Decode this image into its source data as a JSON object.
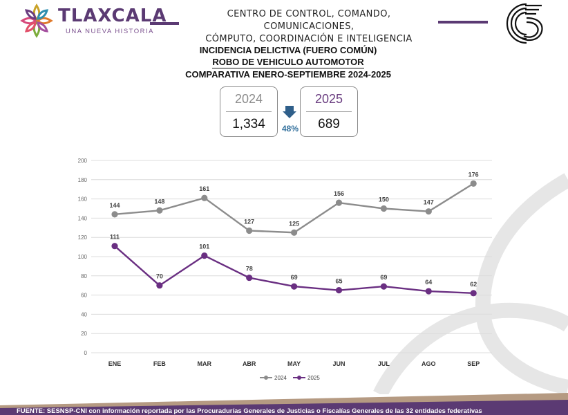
{
  "header": {
    "brand": "TLAXCALA",
    "brand_tagline": "UNA NUEVA HISTORIA",
    "center_line1": "CENTRO DE CONTROL, COMANDO, COMUNICACIONES,",
    "center_line2": "CÓMPUTO, COORDINACIÓN E INTELIGENCIA"
  },
  "title": {
    "line1": "INCIDENCIA DELICTIVA (FUERO COMÚN)",
    "line2": "ROBO DE VEHICULO AUTOMOTOR",
    "line3": "COMPARATIVA ENERO-SEPTIEMBRE 2024-2025"
  },
  "summary": {
    "year_a": "2024",
    "total_a": "1,334",
    "year_b": "2025",
    "total_b": "689",
    "change_pct": "48%"
  },
  "colors": {
    "series_2024": "#8c8c8c",
    "series_2025": "#6a2f82",
    "brand_purple": "#5b3a73",
    "change_arrow": "#2f6e9b"
  },
  "chart_data": {
    "type": "line",
    "title": "",
    "xlabel": "",
    "ylabel": "",
    "categories": [
      "ENE",
      "FEB",
      "MAR",
      "ABR",
      "MAY",
      "JUN",
      "JUL",
      "AGO",
      "SEP"
    ],
    "ylim": [
      0,
      200
    ],
    "yticks": [
      0,
      20,
      40,
      60,
      80,
      100,
      120,
      140,
      160,
      180,
      200
    ],
    "grid": true,
    "legend_position": "bottom",
    "data_labels": true,
    "series": [
      {
        "name": "2024",
        "values": [
          144,
          148,
          161,
          127,
          125,
          156,
          150,
          147,
          176
        ]
      },
      {
        "name": "2025",
        "values": [
          111,
          70,
          101,
          78,
          69,
          65,
          69,
          64,
          62
        ]
      }
    ]
  },
  "footer": {
    "text": "FUENTE: SESNSP-CNI con información reportada por las Procuradurías Generales de Justicias o Fiscalías Generales de las 32 entidades federativas"
  }
}
